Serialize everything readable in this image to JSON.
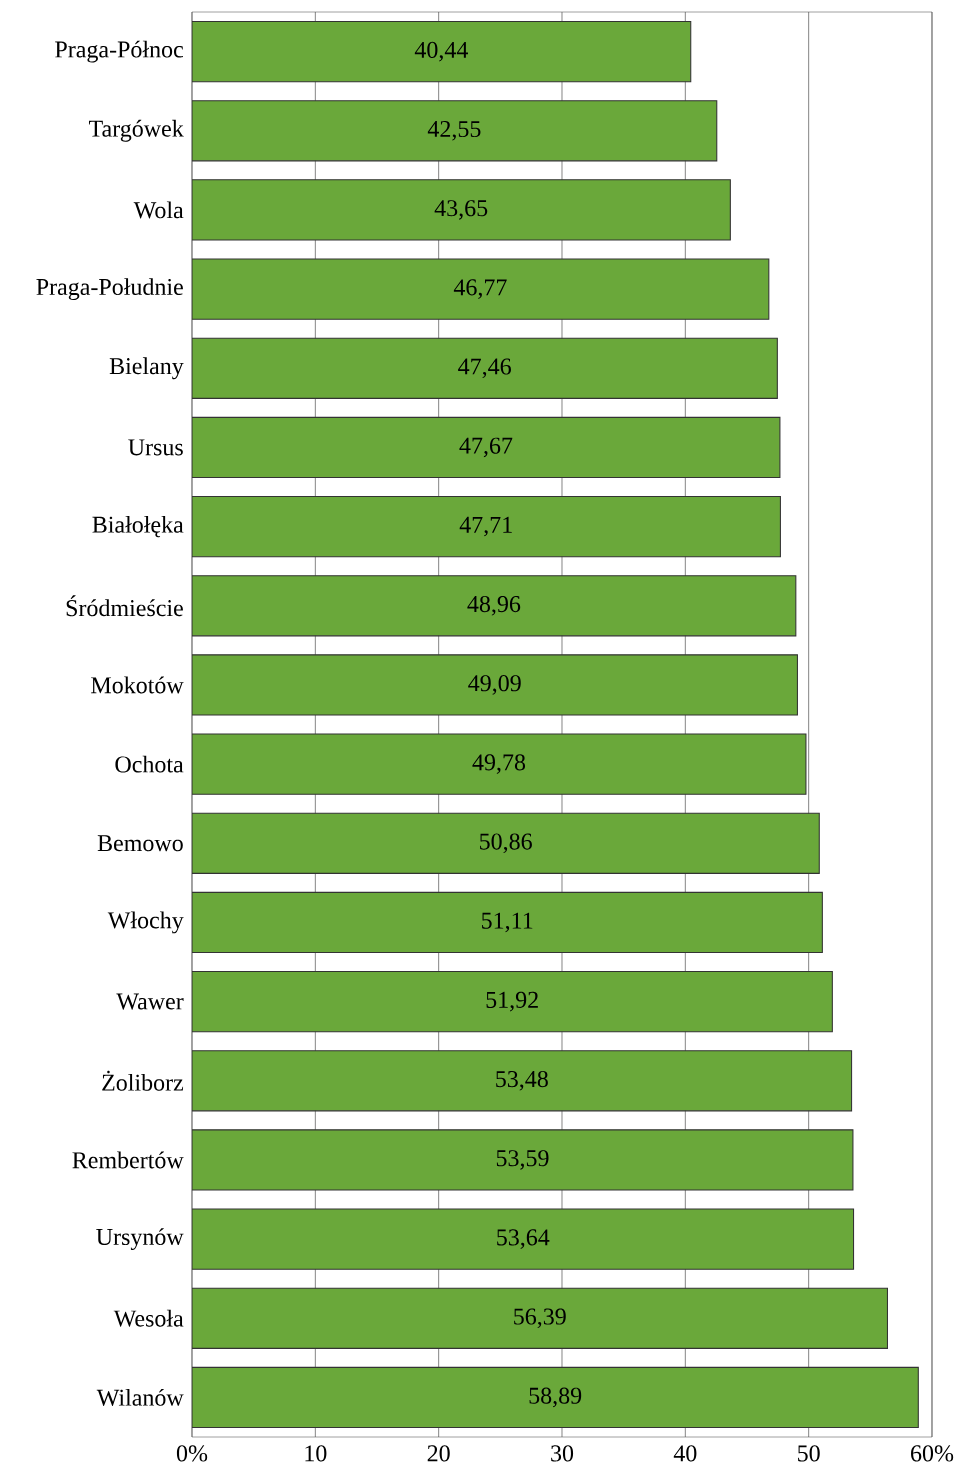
{
  "chart_data": {
    "type": "bar",
    "orientation": "horizontal",
    "categories": [
      "Praga-Północ",
      "Targówek",
      "Wola",
      "Praga-Południe",
      "Bielany",
      "Ursus",
      "Białołęka",
      "Śródmieście",
      "Mokotów",
      "Ochota",
      "Bemowo",
      "Włochy",
      "Wawer",
      "Żoliborz",
      "Rembertów",
      "Ursynów",
      "Wesoła",
      "Wilanów"
    ],
    "values": [
      40.44,
      42.55,
      43.65,
      46.77,
      47.46,
      47.67,
      47.71,
      48.96,
      49.09,
      49.78,
      50.86,
      51.11,
      51.92,
      53.48,
      53.59,
      53.64,
      56.39,
      58.89
    ],
    "value_labels": [
      "40,44",
      "42,55",
      "43,65",
      "46,77",
      "47,46",
      "47,67",
      "47,71",
      "48,96",
      "49,09",
      "49,78",
      "50,86",
      "51,11",
      "51,92",
      "53,48",
      "53,59",
      "53,64",
      "56,39",
      "58,89"
    ],
    "color": "#6aa83a",
    "xlim": [
      0,
      60
    ],
    "xticks": [
      {
        "value": 0,
        "label": "0%"
      },
      10,
      20,
      30,
      40,
      50,
      {
        "value": 60,
        "label": "60%"
      }
    ],
    "grid": "x"
  }
}
